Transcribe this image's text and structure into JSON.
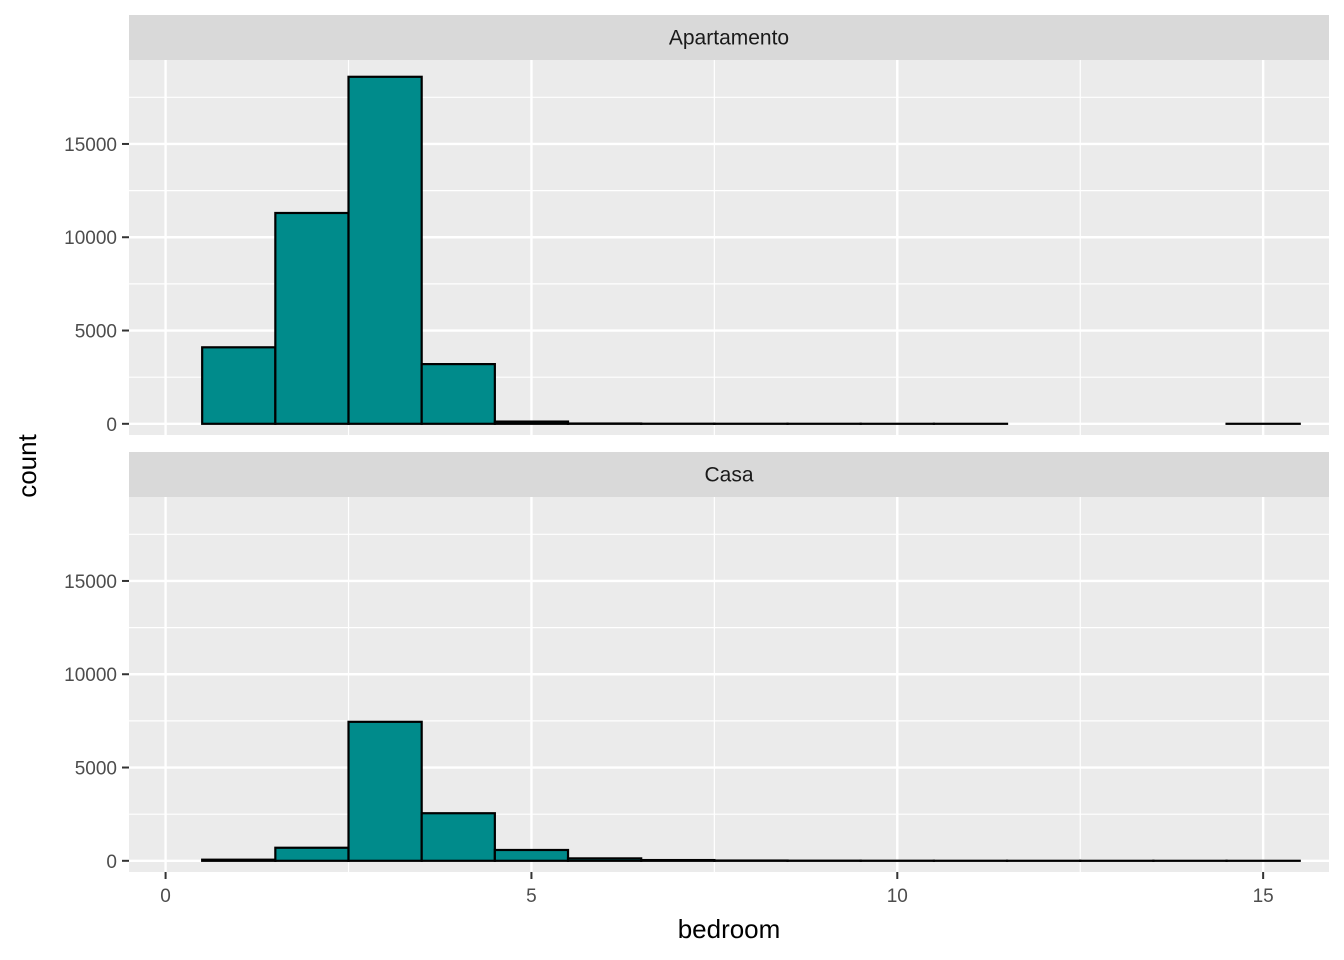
{
  "chart_data": {
    "type": "bar",
    "subtype": "faceted-histogram",
    "xlabel": "bedroom",
    "ylabel": "count",
    "xlim": [
      -0.5,
      15.9
    ],
    "ylim": [
      -600,
      19500
    ],
    "xticks": [
      0,
      5,
      10,
      15
    ],
    "yticks": [
      0,
      5000,
      10000,
      15000
    ],
    "bin_width": 1,
    "fill_color": "#008B8B",
    "outline_color": "#000000",
    "panel_background": "#EBEBEB",
    "strip_background": "#D9D9D9",
    "grid": true,
    "facets": [
      {
        "label": "Apartamento",
        "bins": [
          {
            "x": 1,
            "count": 4100
          },
          {
            "x": 2,
            "count": 11300
          },
          {
            "x": 3,
            "count": 18600
          },
          {
            "x": 4,
            "count": 3200
          },
          {
            "x": 5,
            "count": 120
          },
          {
            "x": 6,
            "count": 15
          },
          {
            "x": 7,
            "count": 5
          },
          {
            "x": 8,
            "count": 3
          },
          {
            "x": 9,
            "count": 2
          },
          {
            "x": 10,
            "count": 1
          },
          {
            "x": 11,
            "count": 1
          },
          {
            "x": 12,
            "count": 0
          },
          {
            "x": 13,
            "count": 0
          },
          {
            "x": 14,
            "count": 0
          },
          {
            "x": 15,
            "count": 1
          }
        ]
      },
      {
        "label": "Casa",
        "bins": [
          {
            "x": 1,
            "count": 60
          },
          {
            "x": 2,
            "count": 700
          },
          {
            "x": 3,
            "count": 7450
          },
          {
            "x": 4,
            "count": 2550
          },
          {
            "x": 5,
            "count": 580
          },
          {
            "x": 6,
            "count": 130
          },
          {
            "x": 7,
            "count": 40
          },
          {
            "x": 8,
            "count": 15
          },
          {
            "x": 9,
            "count": 8
          },
          {
            "x": 10,
            "count": 5
          },
          {
            "x": 11,
            "count": 3
          },
          {
            "x": 12,
            "count": 2
          },
          {
            "x": 13,
            "count": 1
          },
          {
            "x": 14,
            "count": 1
          },
          {
            "x": 15,
            "count": 1
          }
        ]
      }
    ]
  }
}
